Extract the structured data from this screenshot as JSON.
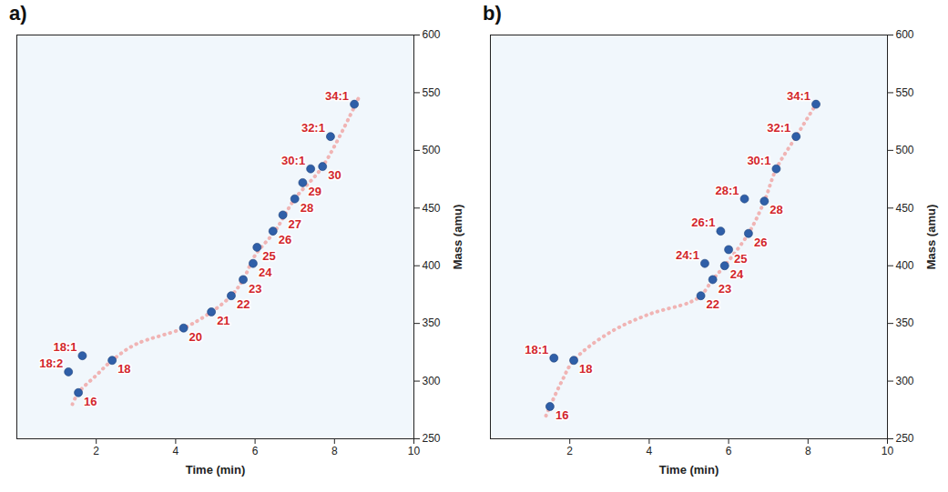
{
  "chart_data": [
    {
      "type": "scatter",
      "title": "a)",
      "xlabel": "Time (min)",
      "ylabel": "Mass (amu)",
      "xlim": [
        0,
        10
      ],
      "xticks": [
        2,
        4,
        6,
        8,
        10
      ],
      "ylim": [
        250,
        600
      ],
      "yticks": [
        250,
        300,
        350,
        400,
        450,
        500,
        550,
        600
      ],
      "series": [
        {
          "type": "scatter",
          "color": "#2f5fa8",
          "labels": [
            "16",
            "18:2",
            "18:1",
            "18",
            "20",
            "21",
            "22",
            "23",
            "24",
            "25",
            "26",
            "27",
            "28",
            "29",
            "30:1",
            "30",
            "32:1",
            "34:1"
          ],
          "x": [
            1.55,
            1.3,
            1.65,
            2.4,
            4.2,
            4.9,
            5.4,
            5.7,
            5.95,
            6.05,
            6.45,
            6.7,
            7.0,
            7.2,
            7.4,
            7.7,
            7.9,
            8.5
          ],
          "y": [
            290,
            308,
            322,
            318,
            346,
            360,
            374,
            388,
            402,
            416,
            430,
            444,
            458,
            472,
            484,
            486,
            512,
            540
          ]
        },
        {
          "type": "line",
          "color": "#f0b4b4",
          "line_style": "dotted",
          "x": [
            1.4,
            1.55,
            2.0,
            2.4,
            3.0,
            4.2,
            4.9,
            5.4,
            5.7,
            6.0,
            6.5,
            7.0,
            7.7,
            8.6
          ],
          "y": [
            280,
            290,
            305,
            318,
            332,
            346,
            360,
            374,
            388,
            409,
            430,
            458,
            486,
            545
          ]
        }
      ]
    },
    {
      "type": "scatter",
      "title": "b)",
      "xlabel": "Time (min)",
      "ylabel": "Mass (amu)",
      "xlim": [
        0,
        10
      ],
      "xticks": [
        2,
        4,
        6,
        8,
        10
      ],
      "ylim": [
        250,
        600
      ],
      "yticks": [
        250,
        300,
        350,
        400,
        450,
        500,
        550,
        600
      ],
      "series": [
        {
          "type": "scatter",
          "color": "#2f5fa8",
          "labels": [
            "16",
            "18:1",
            "18",
            "22",
            "23",
            "24:1",
            "24",
            "25",
            "26:1",
            "26",
            "28:1",
            "28",
            "30:1",
            "32:1",
            "34:1"
          ],
          "x": [
            1.5,
            1.6,
            2.1,
            5.3,
            5.6,
            5.4,
            5.9,
            6.0,
            5.8,
            6.5,
            6.4,
            6.9,
            7.2,
            7.7,
            8.2
          ],
          "y": [
            278,
            320,
            318,
            374,
            388,
            402,
            400,
            414,
            430,
            428,
            458,
            456,
            484,
            512,
            540
          ]
        },
        {
          "type": "line",
          "color": "#f0b4b4",
          "line_style": "dotted",
          "x": [
            1.4,
            1.5,
            1.8,
            2.1,
            3.0,
            4.0,
            5.0,
            5.3,
            5.6,
            5.9,
            6.5,
            6.9,
            7.2,
            7.7,
            8.2
          ],
          "y": [
            270,
            278,
            300,
            318,
            342,
            358,
            368,
            374,
            388,
            400,
            428,
            456,
            484,
            512,
            540
          ]
        }
      ]
    }
  ]
}
